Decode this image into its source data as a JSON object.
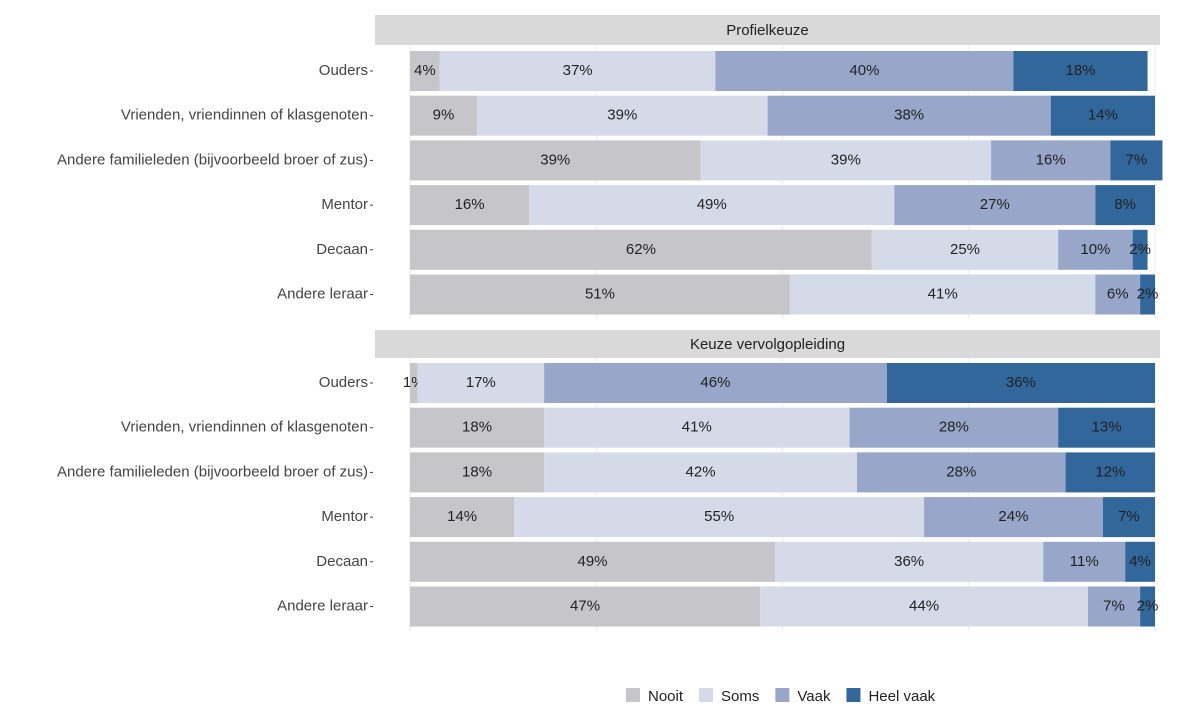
{
  "chart_data": [
    {
      "type": "bar",
      "orientation": "horizontal",
      "stacked": true,
      "title": "Profielkeuze",
      "categories": [
        "Ouders",
        "Vrienden, vriendinnen of klasgenoten",
        "Andere familieleden (bijvoorbeeld broer of zus)",
        "Mentor",
        "Decaan",
        "Andere leraar"
      ],
      "xlim": [
        0,
        100
      ],
      "xticks": [
        0,
        25,
        50,
        75,
        100
      ],
      "grid": true,
      "series": [
        {
          "name": "Nooit",
          "color": "#c6c5ca",
          "values": [
            4,
            9,
            39,
            16,
            62,
            51
          ],
          "value_labels": [
            "4%",
            "9%",
            "39%",
            "16%",
            "62%",
            "51%"
          ]
        },
        {
          "name": "Soms",
          "color": "#d5dae9",
          "values": [
            37,
            39,
            39,
            49,
            25,
            41
          ],
          "value_labels": [
            "37%",
            "39%",
            "39%",
            "49%",
            "25%",
            "41%"
          ]
        },
        {
          "name": "Vaak",
          "color": "#97a6c9",
          "values": [
            40,
            38,
            16,
            27,
            10,
            6
          ],
          "value_labels": [
            "40%",
            "38%",
            "16%",
            "27%",
            "10%",
            "6%"
          ]
        },
        {
          "name": "Heel vaak",
          "color": "#31679b",
          "values": [
            18,
            14,
            7,
            8,
            2,
            2
          ],
          "value_labels": [
            "18%",
            "14%",
            "7%",
            "8%",
            "2%",
            "2%"
          ]
        }
      ]
    },
    {
      "type": "bar",
      "orientation": "horizontal",
      "stacked": true,
      "title": "Keuze vervolgopleiding",
      "categories": [
        "Ouders",
        "Vrienden, vriendinnen of klasgenoten",
        "Andere familieleden (bijvoorbeeld broer of zus)",
        "Mentor",
        "Decaan",
        "Andere leraar"
      ],
      "xlim": [
        0,
        100
      ],
      "xticks": [
        0,
        25,
        50,
        75,
        100
      ],
      "grid": true,
      "series": [
        {
          "name": "Nooit",
          "color": "#c6c5ca",
          "values": [
            1,
            18,
            18,
            14,
            49,
            47
          ],
          "value_labels": [
            "1%",
            "18%",
            "18%",
            "14%",
            "49%",
            "47%"
          ]
        },
        {
          "name": "Soms",
          "color": "#d5dae9",
          "values": [
            17,
            41,
            42,
            55,
            36,
            44
          ],
          "value_labels": [
            "17%",
            "41%",
            "42%",
            "55%",
            "36%",
            "44%"
          ]
        },
        {
          "name": "Vaak",
          "color": "#97a6c9",
          "values": [
            46,
            28,
            28,
            24,
            11,
            7
          ],
          "value_labels": [
            "46%",
            "28%",
            "28%",
            "24%",
            "11%",
            "7%"
          ]
        },
        {
          "name": "Heel vaak",
          "color": "#31679b",
          "values": [
            36,
            13,
            12,
            7,
            4,
            2
          ],
          "value_labels": [
            "36%",
            "13%",
            "12%",
            "7%",
            "4%",
            "2%"
          ]
        }
      ]
    }
  ]
}
